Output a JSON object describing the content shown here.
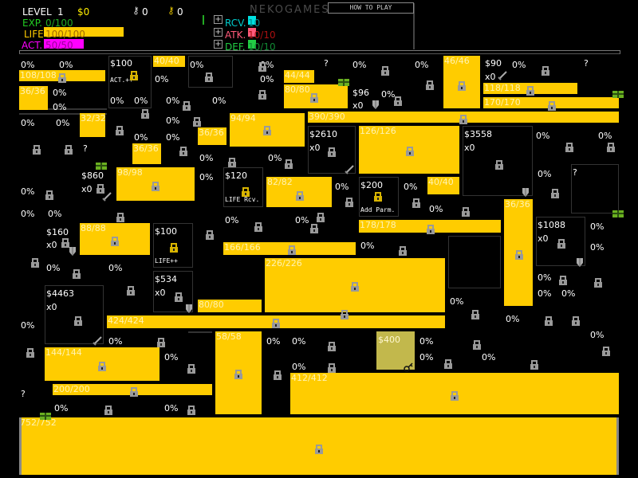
{
  "header": {
    "level_label": "LEVEL",
    "level": "1",
    "money": "$0",
    "silver_keys": "0",
    "gold_keys": "0",
    "logo": "NEKOGAMES",
    "how_to_play": "HOW TO PLAY",
    "exp_label": "EXP.",
    "exp": "0/100",
    "life_label": "LIFE",
    "life": "100/100",
    "life_fraction": 1.0,
    "act_label": "ACT.",
    "act": "50/50",
    "act_fraction": 1.0,
    "rcv_label": "RCV.",
    "rcv": "10",
    "atk_label": "ATK.",
    "atk": "10/10",
    "def_label": "DEF.",
    "def": "10/10",
    "colors": {
      "exp": "#22cc22",
      "life": "#ffcc00",
      "act": "#ff00ff",
      "rcv": "#00e0e0",
      "atk": "#ff5a7a",
      "def": "#22cc44"
    }
  },
  "colors": {
    "bar": "#ffcc00",
    "lock": "#9a9a9a",
    "gold_lock": "#d8b400",
    "gift": "#6ab020",
    "shop_key_tile": "#c2b84c"
  },
  "bars": [
    "108/108",
    "40/40",
    "44/44",
    "36/36",
    "80/80",
    "46/46",
    "118/118",
    "170/170",
    "390/390",
    "32/32",
    "94/94",
    "36/36",
    "36/36",
    "126/126",
    "98/98",
    "82/82",
    "40/40",
    "36/36",
    "178/178",
    "88/88",
    "166/166",
    "226/226",
    "80/80",
    "424/424",
    "58/58",
    "144/144",
    "200/200",
    "412/412",
    "752/752"
  ],
  "shops": [
    {
      "price": "$100",
      "label": "ACT.++",
      "icon": "gold-lock"
    },
    {
      "price": "$96",
      "count": "x0",
      "icon": "shield"
    },
    {
      "price": "$90",
      "count": "x0",
      "icon": "sword"
    },
    {
      "price": "$2610",
      "count": "x0",
      "icon": "sword"
    },
    {
      "price": "$3558",
      "count": "x0",
      "icon": "shield"
    },
    {
      "price": "$860",
      "count": "x0",
      "icon": "sword"
    },
    {
      "price": "$120",
      "label": "LIFE Rcv.",
      "icon": "gold-lock"
    },
    {
      "price": "$200",
      "label": "Add Parm.",
      "icon": "gold-lock"
    },
    {
      "price": "$160",
      "count": "x0",
      "icon": "shield"
    },
    {
      "price": "$100",
      "label": "LIFE++",
      "icon": "gold-lock"
    },
    {
      "price": "$534",
      "count": "x0",
      "icon": "shield"
    },
    {
      "price": "$4463",
      "count": "x0",
      "icon": "sword"
    },
    {
      "price": "$1088",
      "count": "x0",
      "icon": "shield"
    },
    {
      "price": "$400",
      "icon": "key"
    }
  ],
  "unknown_label": "?",
  "percent_label": "0%"
}
